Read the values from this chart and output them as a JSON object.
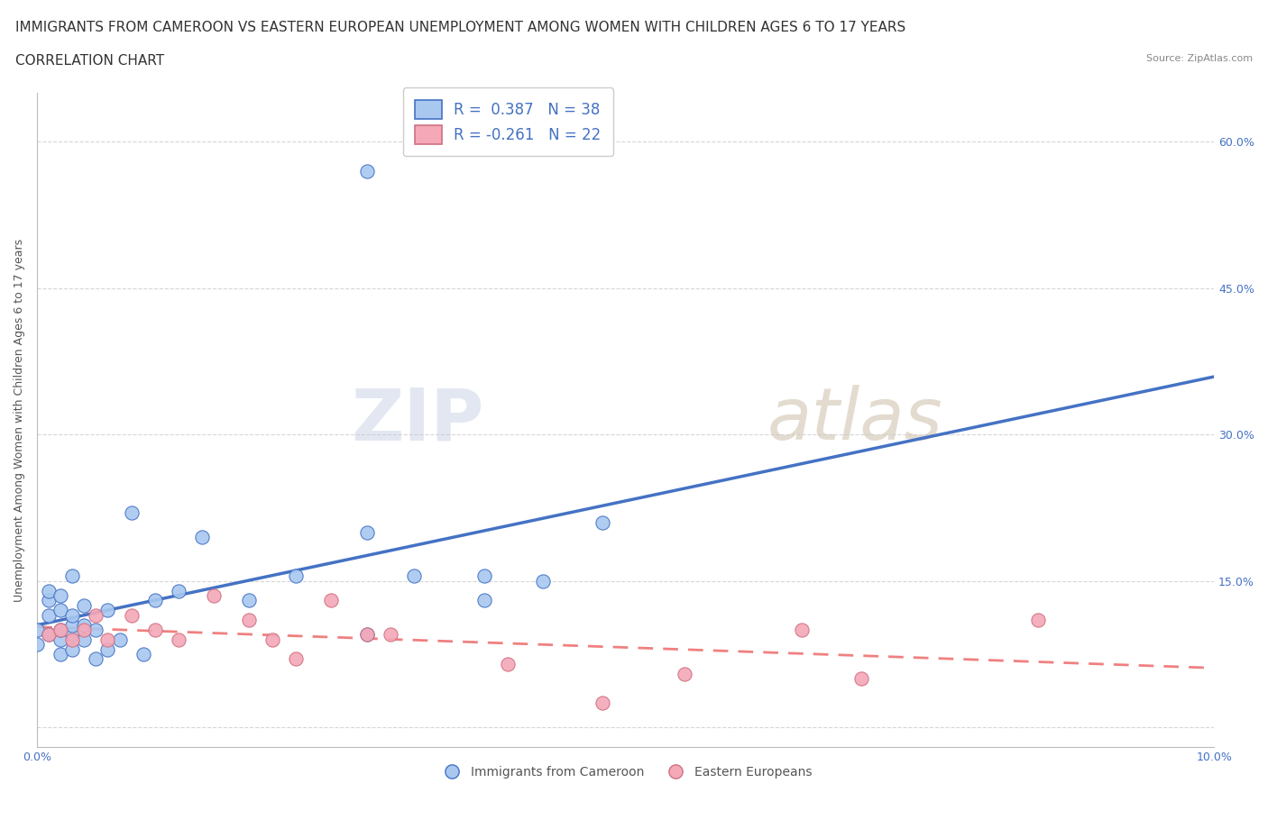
{
  "title_line1": "IMMIGRANTS FROM CAMEROON VS EASTERN EUROPEAN UNEMPLOYMENT AMONG WOMEN WITH CHILDREN AGES 6 TO 17 YEARS",
  "title_line2": "CORRELATION CHART",
  "source_text": "Source: ZipAtlas.com",
  "ylabel": "Unemployment Among Women with Children Ages 6 to 17 years",
  "xlim": [
    0.0,
    0.1
  ],
  "ylim": [
    -0.02,
    0.65
  ],
  "x_ticks": [
    0.0,
    0.02,
    0.04,
    0.06,
    0.08,
    0.1
  ],
  "x_tick_labels": [
    "0.0%",
    "",
    "",
    "",
    "",
    "10.0%"
  ],
  "y_tick_labels_right": [
    "",
    "15.0%",
    "30.0%",
    "45.0%",
    "60.0%"
  ],
  "y_ticks_right": [
    0.0,
    0.15,
    0.3,
    0.45,
    0.6
  ],
  "watermark_zip": "ZIP",
  "watermark_atlas": "atlas",
  "blue_R": 0.387,
  "blue_N": 38,
  "pink_R": -0.261,
  "pink_N": 22,
  "blue_color": "#A8C8F0",
  "pink_color": "#F4A8B8",
  "blue_line_color": "#4472C4",
  "pink_line_color": "#F08080",
  "background_color": "#FFFFFF",
  "grid_color": "#CCCCCC",
  "blue_scatter_x": [
    0.0,
    0.0,
    0.001,
    0.001,
    0.001,
    0.001,
    0.002,
    0.002,
    0.002,
    0.002,
    0.002,
    0.003,
    0.003,
    0.003,
    0.003,
    0.003,
    0.004,
    0.004,
    0.004,
    0.005,
    0.005,
    0.006,
    0.006,
    0.007,
    0.008,
    0.009,
    0.01,
    0.012,
    0.014,
    0.018,
    0.022,
    0.028,
    0.032,
    0.038,
    0.043,
    0.048,
    0.028,
    0.038
  ],
  "blue_scatter_y": [
    0.085,
    0.1,
    0.095,
    0.115,
    0.13,
    0.14,
    0.075,
    0.09,
    0.1,
    0.12,
    0.135,
    0.08,
    0.095,
    0.105,
    0.115,
    0.155,
    0.09,
    0.105,
    0.125,
    0.07,
    0.1,
    0.08,
    0.12,
    0.09,
    0.22,
    0.075,
    0.13,
    0.14,
    0.195,
    0.13,
    0.155,
    0.2,
    0.155,
    0.13,
    0.15,
    0.21,
    0.095,
    0.155
  ],
  "blue_outlier_x": [
    0.028
  ],
  "blue_outlier_y": [
    0.57
  ],
  "pink_scatter_x": [
    0.001,
    0.002,
    0.003,
    0.004,
    0.005,
    0.006,
    0.008,
    0.01,
    0.012,
    0.015,
    0.018,
    0.02,
    0.022,
    0.025,
    0.028,
    0.03,
    0.04,
    0.048,
    0.055,
    0.065,
    0.07,
    0.085
  ],
  "pink_scatter_y": [
    0.095,
    0.1,
    0.09,
    0.1,
    0.115,
    0.09,
    0.115,
    0.1,
    0.09,
    0.135,
    0.11,
    0.09,
    0.07,
    0.13,
    0.095,
    0.095,
    0.065,
    0.025,
    0.055,
    0.1,
    0.05,
    0.11
  ],
  "title_fontsize": 11,
  "subtitle_fontsize": 11,
  "axis_label_fontsize": 9,
  "tick_fontsize": 9,
  "legend_fontsize": 12
}
